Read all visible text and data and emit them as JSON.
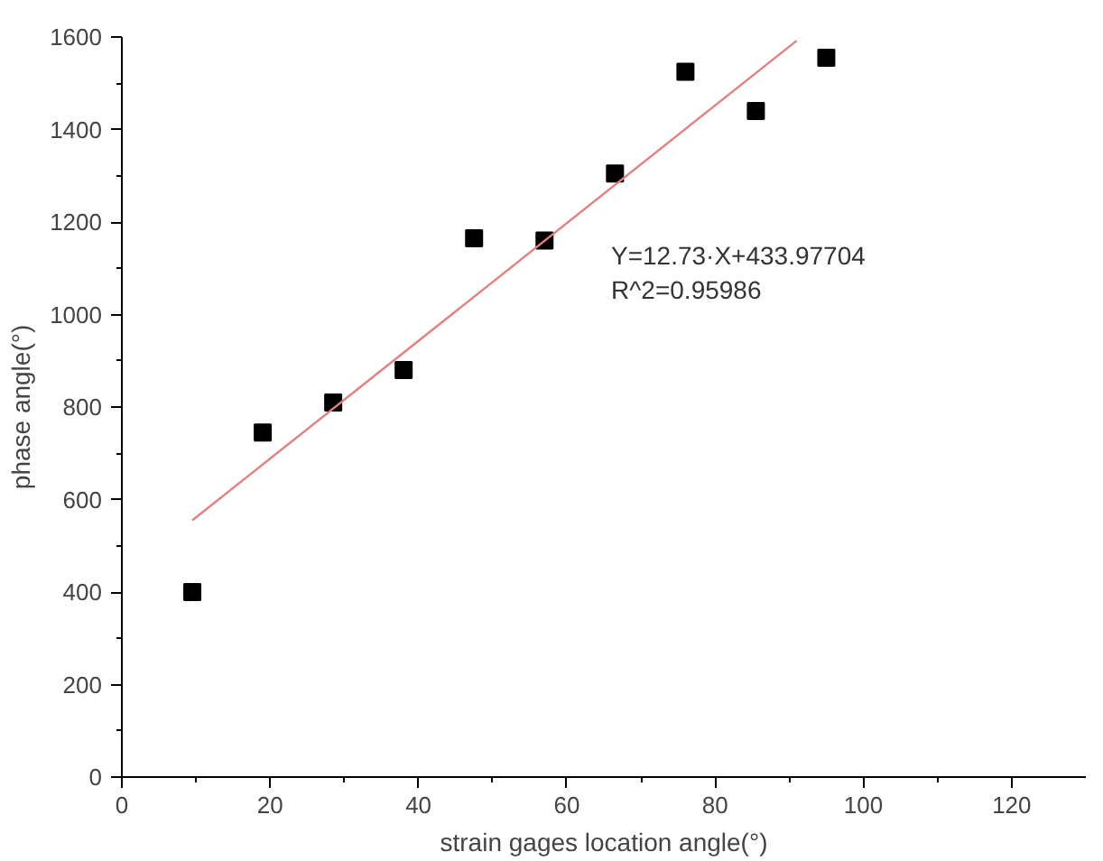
{
  "chart_data": {
    "type": "scatter",
    "xlabel": "strain gages location angle(°)",
    "ylabel": "phase angle(°)",
    "series": [
      {
        "color": "#000000",
        "marker": "square",
        "x": [
          9.5,
          19,
          28.5,
          38,
          47.5,
          57,
          66.5,
          76,
          85.5,
          95
        ],
        "values": [
          400,
          745,
          810,
          880,
          1165,
          1160,
          1305,
          1525,
          1440,
          1555
        ]
      },
      {
        "type": "line",
        "color": "#e08080",
        "marker": "none",
        "line_style": "solid",
        "x": [
          9.5,
          91
        ],
        "values": [
          555,
          1592
        ]
      }
    ],
    "annotations": [
      "Y=12.73·X+433.97704\nR^2=0.95986"
    ],
    "xlim": [
      0,
      130
    ],
    "ylim": [
      0,
      1600
    ],
    "xticks": [
      0,
      20,
      40,
      60,
      80,
      100,
      120
    ],
    "yticks": [
      0,
      200,
      400,
      600,
      800,
      1000,
      1200,
      1400,
      1600
    ],
    "grid": false
  }
}
